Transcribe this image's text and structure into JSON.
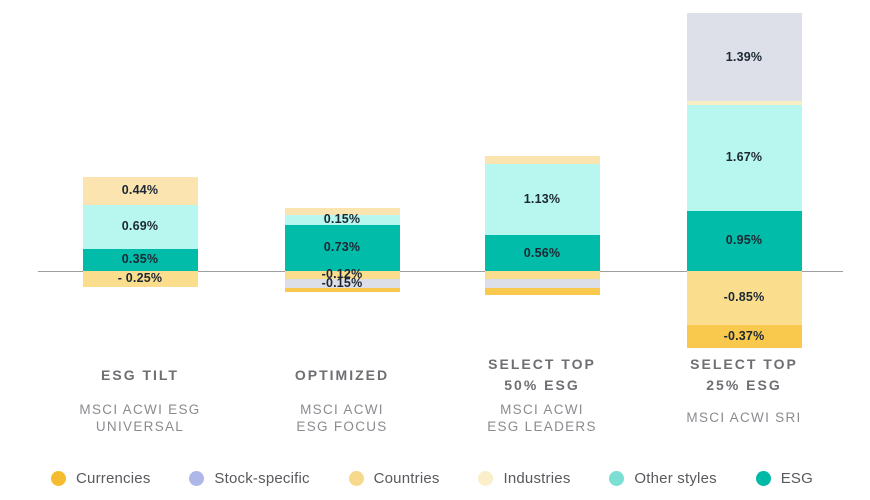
{
  "chart_data": {
    "type": "bar",
    "variant": "stacked-bar-with-negative-values",
    "unit": "%",
    "title": "",
    "ylim": [
      -1.3,
      4.1
    ],
    "grid": false,
    "baseline_value": 0,
    "bars": [
      {
        "title_lines": [
          "ESG TILT"
        ],
        "subtitle_lines": [
          "MSCI ACWI ESG",
          "UNIVERSAL"
        ],
        "segments": [
          {
            "category": "Industries",
            "value": 0.44,
            "label": "0.44%",
            "color": "#FBE4AF"
          },
          {
            "category": "Other styles",
            "value": 0.69,
            "label": "0.69%",
            "color": "#B8F7F0"
          },
          {
            "category": "ESG",
            "value": 0.35,
            "label": "0.35%",
            "color": "#00BCA9"
          },
          {
            "category": "Countries",
            "value": -0.25,
            "label": "- 0.25%",
            "color": "#FBDD8E"
          }
        ]
      },
      {
        "title_lines": [
          "OPTIMIZED"
        ],
        "subtitle_lines": [
          "MSCI ACWI",
          "ESG FOCUS"
        ],
        "segments": [
          {
            "category": "Industries",
            "value": 0.11,
            "label": null,
            "color": "#FBE4AF"
          },
          {
            "category": "Other styles",
            "value": 0.15,
            "label": "0.15%",
            "color": "#B8F7F0"
          },
          {
            "category": "ESG",
            "value": 0.73,
            "label": "0.73%",
            "color": "#00BCA9"
          },
          {
            "category": "Countries",
            "value": -0.12,
            "label": "-0.12%",
            "color": "#FBDD8E"
          },
          {
            "category": "Stock-specific",
            "value": -0.15,
            "label": "-0.15%",
            "color": "#DCDFE8"
          },
          {
            "category": "Currencies",
            "value": -0.06,
            "label": null,
            "color": "#F9C94E"
          }
        ]
      },
      {
        "title_lines": [
          "SELECT TOP",
          "50% ESG"
        ],
        "subtitle_lines": [
          "MSCI ACWI",
          "ESG LEADERS"
        ],
        "segments": [
          {
            "category": "Industries",
            "value": 0.12,
            "label": null,
            "color": "#FBE4AF"
          },
          {
            "category": "Other styles",
            "value": 1.13,
            "label": "1.13%",
            "color": "#B8F7F0"
          },
          {
            "category": "ESG",
            "value": 0.56,
            "label": "0.56%",
            "color": "#00BCA9"
          },
          {
            "category": "Countries",
            "value": -0.12,
            "label": null,
            "color": "#FBDD8E"
          },
          {
            "category": "Stock-specific",
            "value": -0.15,
            "label": null,
            "color": "#DCDFE8"
          },
          {
            "category": "Currencies",
            "value": -0.11,
            "label": null,
            "color": "#F9C94E"
          }
        ]
      },
      {
        "title_lines": [
          "SELECT TOP",
          "25% ESG"
        ],
        "subtitle_lines": [
          "MSCI ACWI SRI"
        ],
        "segments": [
          {
            "category": "Stock-specific",
            "value": 1.39,
            "label": "1.39%",
            "color": "#DDE0E9"
          },
          {
            "category": "Industries",
            "value": 0.05,
            "label": null,
            "color": "#F9EFC5"
          },
          {
            "category": "Other styles",
            "value": 1.67,
            "label": "1.67%",
            "color": "#B8F7F0"
          },
          {
            "category": "ESG",
            "value": 0.95,
            "label": "0.95%",
            "color": "#00BCA9"
          },
          {
            "category": "Countries",
            "value": -0.85,
            "label": "-0.85%",
            "color": "#FBDD8E"
          },
          {
            "category": "Currencies",
            "value": -0.37,
            "label": "-0.37%",
            "color": "#F9C94E"
          }
        ]
      }
    ],
    "legend": [
      {
        "label": "Currencies",
        "color": "#F6BC2F"
      },
      {
        "label": "Stock-specific",
        "color": "#AEB8E8"
      },
      {
        "label": "Countries",
        "color": "#F7D98B"
      },
      {
        "label": "Industries",
        "color": "#FAEFC8"
      },
      {
        "label": "Other styles",
        "color": "#7BDFD3"
      },
      {
        "label": "ESG",
        "color": "#00B9A6"
      }
    ],
    "legend_position": "bottom",
    "colors": {
      "axis_line": "#9e9e9e",
      "segment_label_text": "#1c2733",
      "bar_title_text": "#6e6e73",
      "bar_subtitle_text": "#8b8b90",
      "legend_text": "#59595e"
    }
  }
}
